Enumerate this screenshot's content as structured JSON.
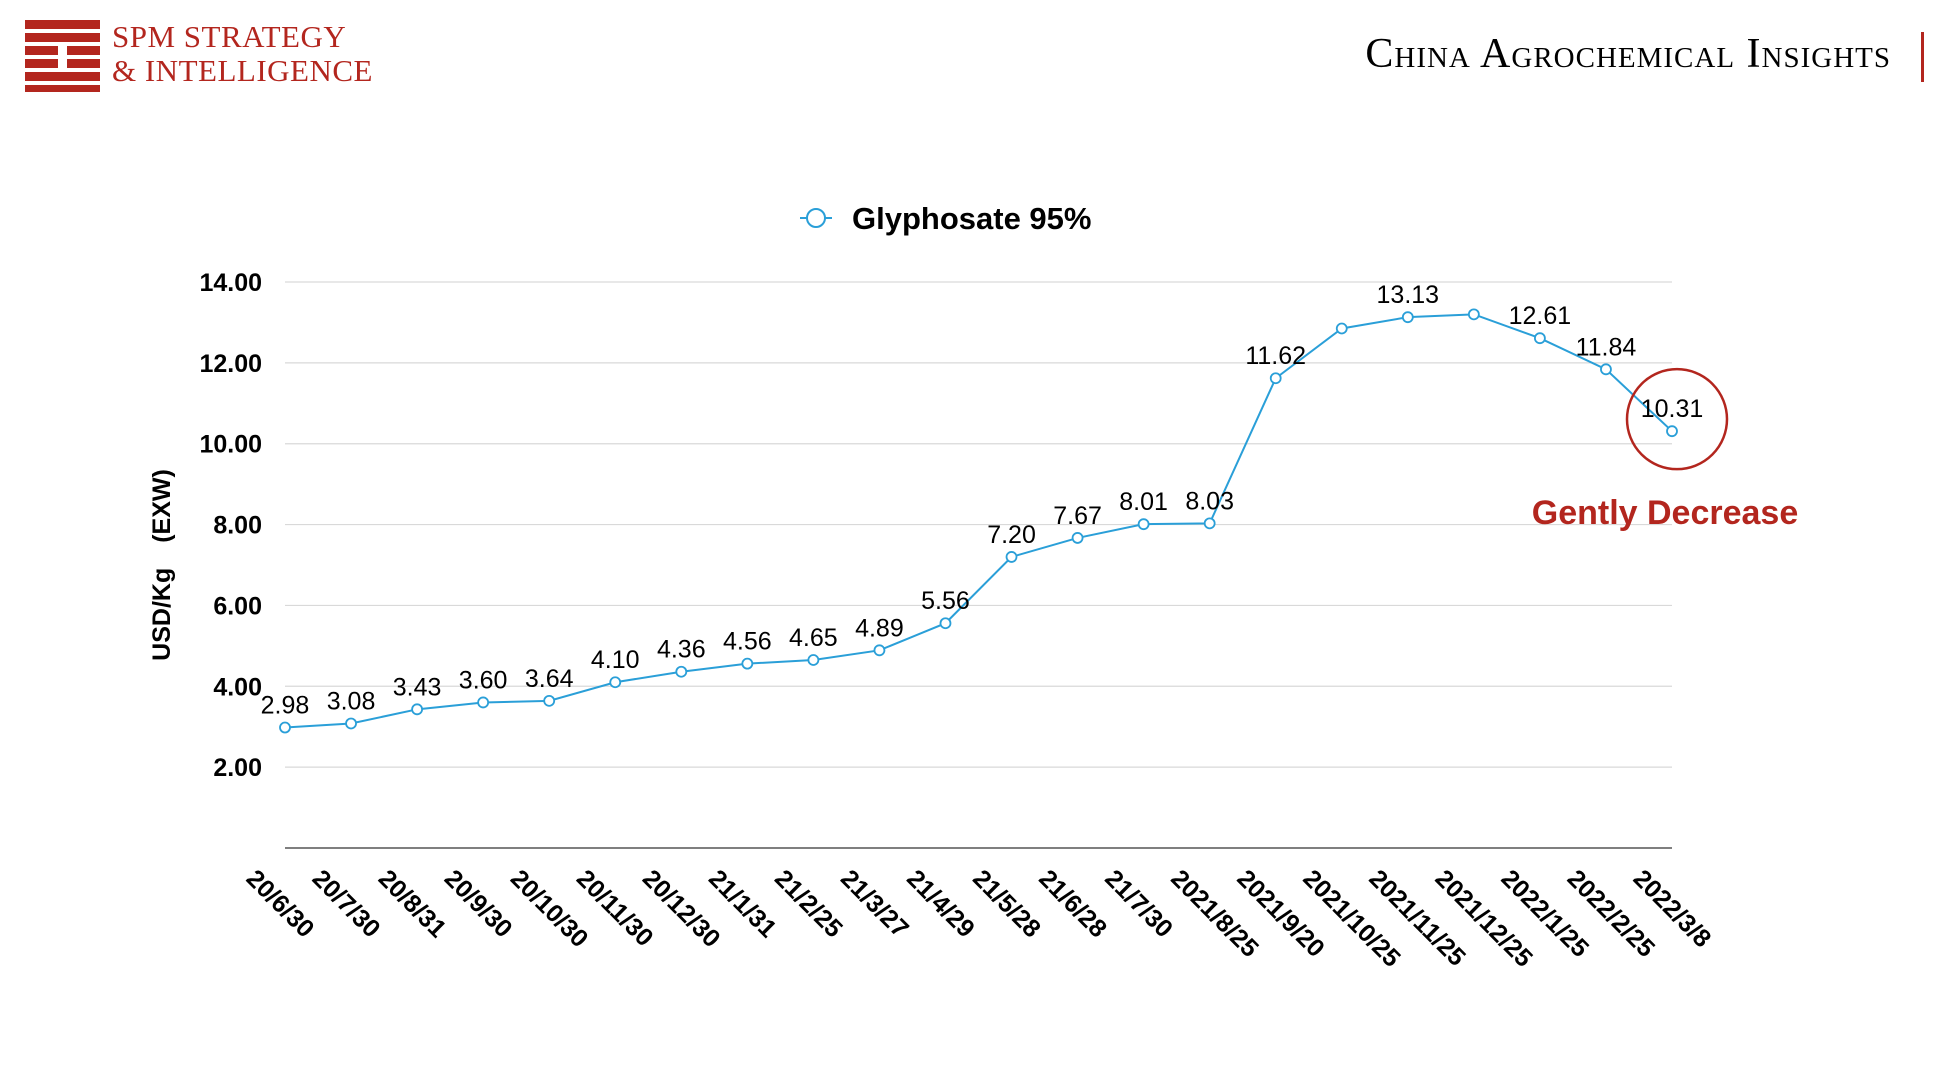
{
  "header": {
    "brand_line1": "SPM STRATEGY",
    "brand_line2": "& INTELLIGENCE",
    "title": "China Agrochemical Insights"
  },
  "colors": {
    "brand": "#b3261e",
    "series": "#2a9fd8",
    "highlight": "#b3261e",
    "grid": "#d9d9d9"
  },
  "annotation": {
    "text": "Gently Decrease",
    "target_index": 21
  },
  "chart_data": {
    "type": "line",
    "legend": "Glyphosate 95%",
    "legend_position": "top-center",
    "grid": true,
    "ylabel": "USD/Kg　(EXW)",
    "xlabel": "",
    "ylim": [
      0,
      14
    ],
    "yticks": [
      "2.00",
      "4.00",
      "6.00",
      "8.00",
      "10.00",
      "12.00",
      "14.00"
    ],
    "categories": [
      "20/6/30",
      "20/7/30",
      "20/8/31",
      "20/9/30",
      "20/10/30",
      "20/11/30",
      "20/12/30",
      "21/1/31",
      "21/2/25",
      "21/3/27",
      "21/4/29",
      "21/5/28",
      "21/6/28",
      "21/7/30",
      "2021/8/25",
      "2021/9/20",
      "2021/10/25",
      "2021/11/25",
      "2021/12/25",
      "2022/1/25",
      "2022/2/25",
      "2022/3/8"
    ],
    "series": [
      {
        "name": "Glyphosate 95%",
        "values": [
          2.98,
          3.08,
          3.43,
          3.6,
          3.64,
          4.1,
          4.36,
          4.56,
          4.65,
          4.89,
          5.56,
          7.2,
          7.67,
          8.01,
          8.03,
          11.62,
          12.85,
          13.13,
          13.2,
          12.61,
          11.84,
          10.31
        ],
        "labels": [
          "2.98",
          "3.08",
          "3.43",
          "3.60",
          "3.64",
          "4.10",
          "4.36",
          "4.56",
          "4.65",
          "4.89",
          "5.56",
          "7.20",
          "7.67",
          "8.01",
          "8.03",
          "11.62",
          "",
          "13.13",
          "",
          "12.61",
          "11.84",
          "10.31"
        ]
      }
    ]
  }
}
